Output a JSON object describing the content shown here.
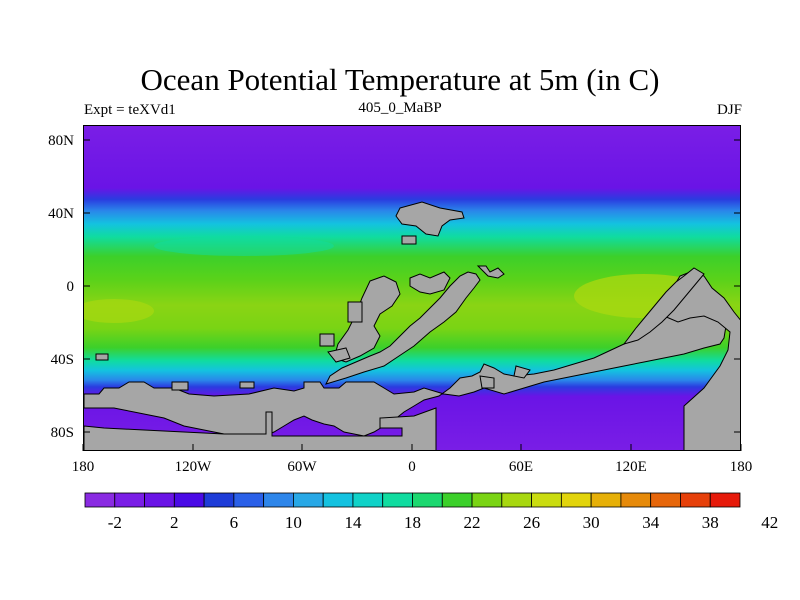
{
  "title": "Ocean Potential Temperature at 5m (in C)",
  "subtitle_left": "Expt = teXVd1",
  "subtitle_center": "405_0_MaBP",
  "subtitle_right": "DJF",
  "y_ticks": [
    "80N",
    "40N",
    "0",
    "40S",
    "80S"
  ],
  "x_ticks": [
    "180",
    "120W",
    "60W",
    "0",
    "60E",
    "120E",
    "180"
  ],
  "colorbar": {
    "labels": [
      "-2",
      "2",
      "6",
      "10",
      "14",
      "18",
      "22",
      "26",
      "30",
      "34",
      "38",
      "42"
    ],
    "colors": [
      "#8a2be2",
      "#7a1ee6",
      "#6a14e6",
      "#4a0ae6",
      "#1e3cd8",
      "#2a60e8",
      "#2e86ea",
      "#28a8e6",
      "#14c2e0",
      "#10d2c8",
      "#10dca0",
      "#1cd870",
      "#3cd02a",
      "#7ad414",
      "#a8d810",
      "#cadc10",
      "#e2d40c",
      "#e6b008",
      "#e68a0a",
      "#e6660a",
      "#e6400a",
      "#e61a0a"
    ]
  },
  "colors": {
    "land": "#a6a6a6",
    "frame": "#000000"
  }
}
